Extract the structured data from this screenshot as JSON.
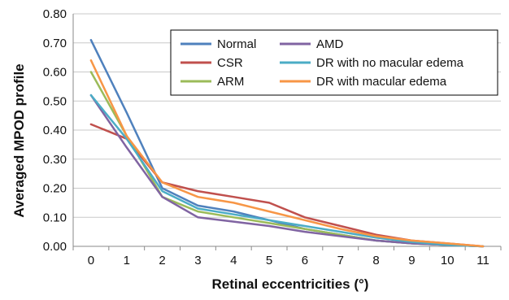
{
  "chart_data": {
    "type": "line",
    "title": "",
    "xlabel": "Retinal eccentricities (°)",
    "ylabel": "Averaged MPOD profile",
    "x": [
      0,
      1,
      2,
      3,
      4,
      5,
      6,
      7,
      8,
      9,
      10,
      11
    ],
    "x_tick_labels": [
      "0",
      "1",
      "2",
      "3",
      "4",
      "5",
      "6",
      "7",
      "8",
      "9",
      "10",
      "11"
    ],
    "ylim": [
      0,
      0.8
    ],
    "y_ticks": [
      0,
      0.1,
      0.2,
      0.3,
      0.4,
      0.5,
      0.6,
      0.7,
      0.8
    ],
    "y_tick_labels": [
      "0.00",
      "0.10",
      "0.20",
      "0.30",
      "0.40",
      "0.50",
      "0.60",
      "0.70",
      "0.80"
    ],
    "grid": true,
    "legend_position": "top-right",
    "series": [
      {
        "name": "Normal",
        "color": "#4f81bd",
        "values": [
          0.71,
          0.46,
          0.2,
          0.14,
          0.12,
          0.09,
          0.06,
          0.04,
          0.02,
          0.01,
          0.005,
          0.0
        ]
      },
      {
        "name": "CSR",
        "color": "#c0504d",
        "values": [
          0.42,
          0.37,
          0.22,
          0.19,
          0.17,
          0.15,
          0.1,
          0.07,
          0.04,
          0.02,
          0.01,
          0.0
        ]
      },
      {
        "name": "ARM",
        "color": "#9bbb59",
        "values": [
          0.6,
          0.38,
          0.17,
          0.12,
          0.1,
          0.08,
          0.06,
          0.04,
          0.02,
          0.01,
          0.005,
          0.0
        ]
      },
      {
        "name": "AMD",
        "color": "#8064a2",
        "values": [
          0.52,
          0.34,
          0.17,
          0.1,
          0.085,
          0.07,
          0.05,
          0.035,
          0.02,
          0.01,
          0.005,
          0.0
        ]
      },
      {
        "name": "DR with no macular edema",
        "color": "#4bacc6",
        "values": [
          0.52,
          0.37,
          0.19,
          0.13,
          0.11,
          0.09,
          0.07,
          0.05,
          0.03,
          0.015,
          0.005,
          0.0
        ]
      },
      {
        "name": "DR with macular edema",
        "color": "#f79646",
        "values": [
          0.64,
          0.38,
          0.22,
          0.17,
          0.15,
          0.12,
          0.09,
          0.06,
          0.035,
          0.02,
          0.01,
          0.0
        ]
      }
    ]
  }
}
